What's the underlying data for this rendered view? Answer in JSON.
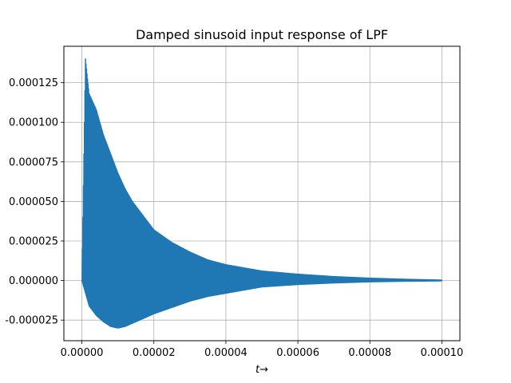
{
  "chart_data": {
    "type": "line",
    "title": "Damped sinusoid input response of LPF",
    "xlabel": "t→",
    "ylabel": "",
    "xlim": [
      -5e-06,
      0.000105
    ],
    "ylim": [
      -3.8e-05,
      0.000148
    ],
    "grid": true,
    "xticks": [
      0.0,
      2e-05,
      4e-05,
      6e-05,
      8e-05,
      0.0001
    ],
    "xtick_labels": [
      "0.00000",
      "0.00002",
      "0.00004",
      "0.00006",
      "0.00008",
      "0.00010"
    ],
    "yticks": [
      -2.5e-05,
      0.0,
      2.5e-05,
      5e-05,
      7.5e-05,
      0.0001,
      0.000125
    ],
    "ytick_labels": [
      "-0.000025",
      "0.000000",
      "0.000025",
      "0.000050",
      "0.000075",
      "0.000100",
      "0.000125"
    ],
    "series": [
      {
        "color": "#1f77b4",
        "x": [
          0.0,
          1e-06,
          2e-06,
          4e-06,
          6e-06,
          8e-06,
          1e-05,
          1.2e-05,
          1.4e-05,
          1.6e-05,
          1.8e-05,
          2e-05,
          2.5e-05,
          3e-05,
          3.5e-05,
          4e-05,
          4.5e-05,
          5e-05,
          6e-05,
          7e-05,
          8e-05,
          9e-05,
          0.0001
        ],
        "upper": [
          0.0,
          0.00014,
          0.000118,
          0.000108,
          9.2e-05,
          8e-05,
          6.8e-05,
          5.8e-05,
          5e-05,
          4.4e-05,
          3.8e-05,
          3.2e-05,
          2.4e-05,
          1.8e-05,
          1.3e-05,
          1e-05,
          8e-06,
          6e-06,
          4e-06,
          2.5e-06,
          1.5e-06,
          8e-07,
          3e-07
        ],
        "lower": [
          0.0,
          -8e-06,
          -1.6e-05,
          -2.2e-05,
          -2.6e-05,
          -2.9e-05,
          -3e-05,
          -2.9e-05,
          -2.7e-05,
          -2.5e-05,
          -2.3e-05,
          -2.1e-05,
          -1.7e-05,
          -1.3e-05,
          -1e-05,
          -8e-06,
          -6e-06,
          -4e-06,
          -2.5e-06,
          -1.5e-06,
          -8e-07,
          -4e-07,
          -2e-07
        ]
      }
    ]
  }
}
